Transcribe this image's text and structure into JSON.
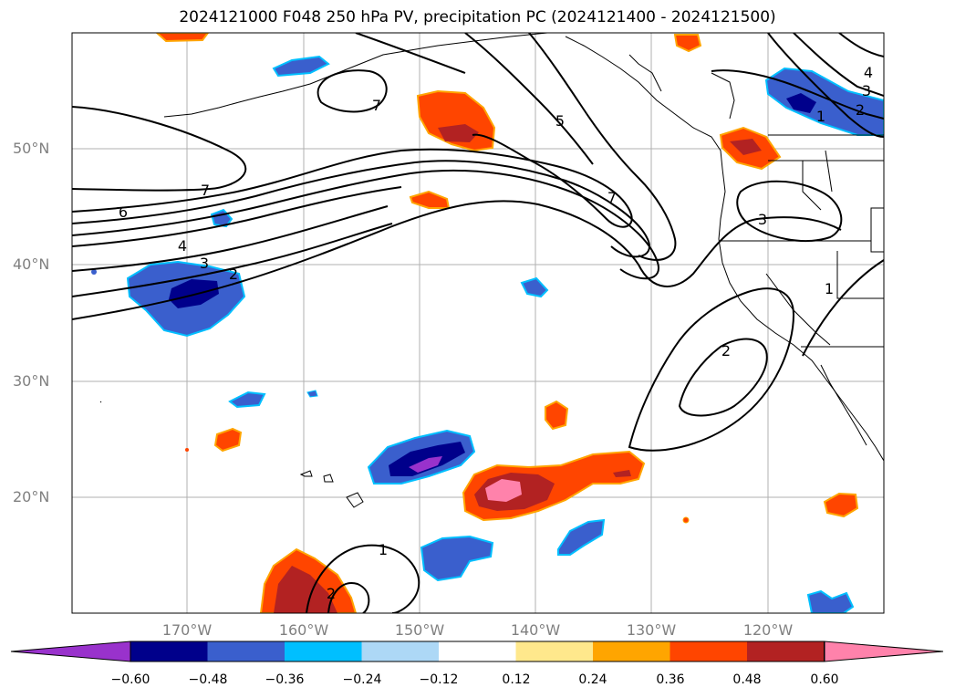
{
  "title": "2024121000 F048 250 hPa PV, precipitation PC (2024121400 - 2024121500)",
  "lat_labels": [
    "50°N",
    "40°N",
    "30°N",
    "20°N"
  ],
  "lon_labels": [
    "170°W",
    "160°W",
    "150°W",
    "140°W",
    "130°W",
    "120°W"
  ],
  "colorbar": {
    "ticks": [
      "−0.60",
      "−0.48",
      "−0.36",
      "−0.24",
      "−0.12",
      "0.12",
      "0.24",
      "0.36",
      "0.48",
      "0.60"
    ],
    "colors": [
      "#9932CC",
      "#00008B",
      "#3A5FCD",
      "#00BFFF",
      "#ADD8F6",
      "#FFFFFF",
      "#FFE88C",
      "#FFA500",
      "#FF4500",
      "#B22222",
      "#FF82AB"
    ]
  },
  "pv_contour_labels": {
    "c7a": "7",
    "c5": "5",
    "c7b": "7",
    "c7c": "7",
    "c6": "6",
    "c4": "4",
    "c3a": "3",
    "c2a": "2",
    "c3b": "3",
    "c2b": "2",
    "c1a": "1",
    "c1b": "1",
    "c4b": "4",
    "c3c": "3",
    "c2c": "2",
    "c1c": "1",
    "c2d": "2"
  }
}
